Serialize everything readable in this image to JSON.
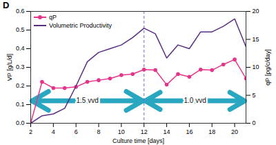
{
  "chart_data": {
    "type": "line",
    "panel_label": "D",
    "x_label": "Culture time [days]",
    "y_label": "VP [g/L/d]",
    "y2_label": "qP [pg/c/day]",
    "x": [
      2,
      3,
      4,
      5,
      6,
      7,
      8,
      9,
      10,
      11,
      12,
      13,
      14,
      15,
      16,
      17,
      18,
      19,
      20,
      21
    ],
    "series": [
      {
        "name": "qP",
        "color": "#e6348a",
        "axis": "y2",
        "marker": "circle",
        "values": [
          0,
          7.4,
          6.3,
          6.3,
          6.5,
          7.4,
          7.7,
          8.0,
          8.6,
          8.8,
          9.6,
          9.5,
          6.9,
          8.8,
          8.3,
          9.6,
          9.5,
          10.5,
          11.4,
          8.0
        ]
      },
      {
        "name": "Volumetric Productivity",
        "color": "#5a2d82",
        "values": [
          0,
          0.04,
          0.05,
          0.08,
          0.2,
          0.33,
          0.38,
          0.4,
          0.42,
          0.46,
          0.51,
          0.48,
          0.35,
          0.42,
          0.4,
          0.49,
          0.49,
          0.52,
          0.56,
          0.41
        ]
      }
    ],
    "xlim": [
      2,
      21
    ],
    "xticks": [
      2,
      4,
      6,
      8,
      10,
      12,
      14,
      16,
      18,
      20
    ],
    "ylim": [
      0,
      0.6
    ],
    "yticks": [
      {
        "value": 0,
        "label": "0.0"
      },
      0.1,
      0.2,
      0.3,
      0.4,
      0.5,
      0.6
    ],
    "y2lim": [
      0,
      20
    ],
    "y2ticks": [
      0,
      5,
      10,
      15,
      20
    ],
    "grid": false,
    "legend": "top-left",
    "vline_x": 12,
    "annotations": [
      {
        "text": "1.5 vvd",
        "x_start": 2,
        "x_end": 12
      },
      {
        "text": "1.0 vvd",
        "x_start": 12,
        "x_end": 21
      }
    ]
  }
}
